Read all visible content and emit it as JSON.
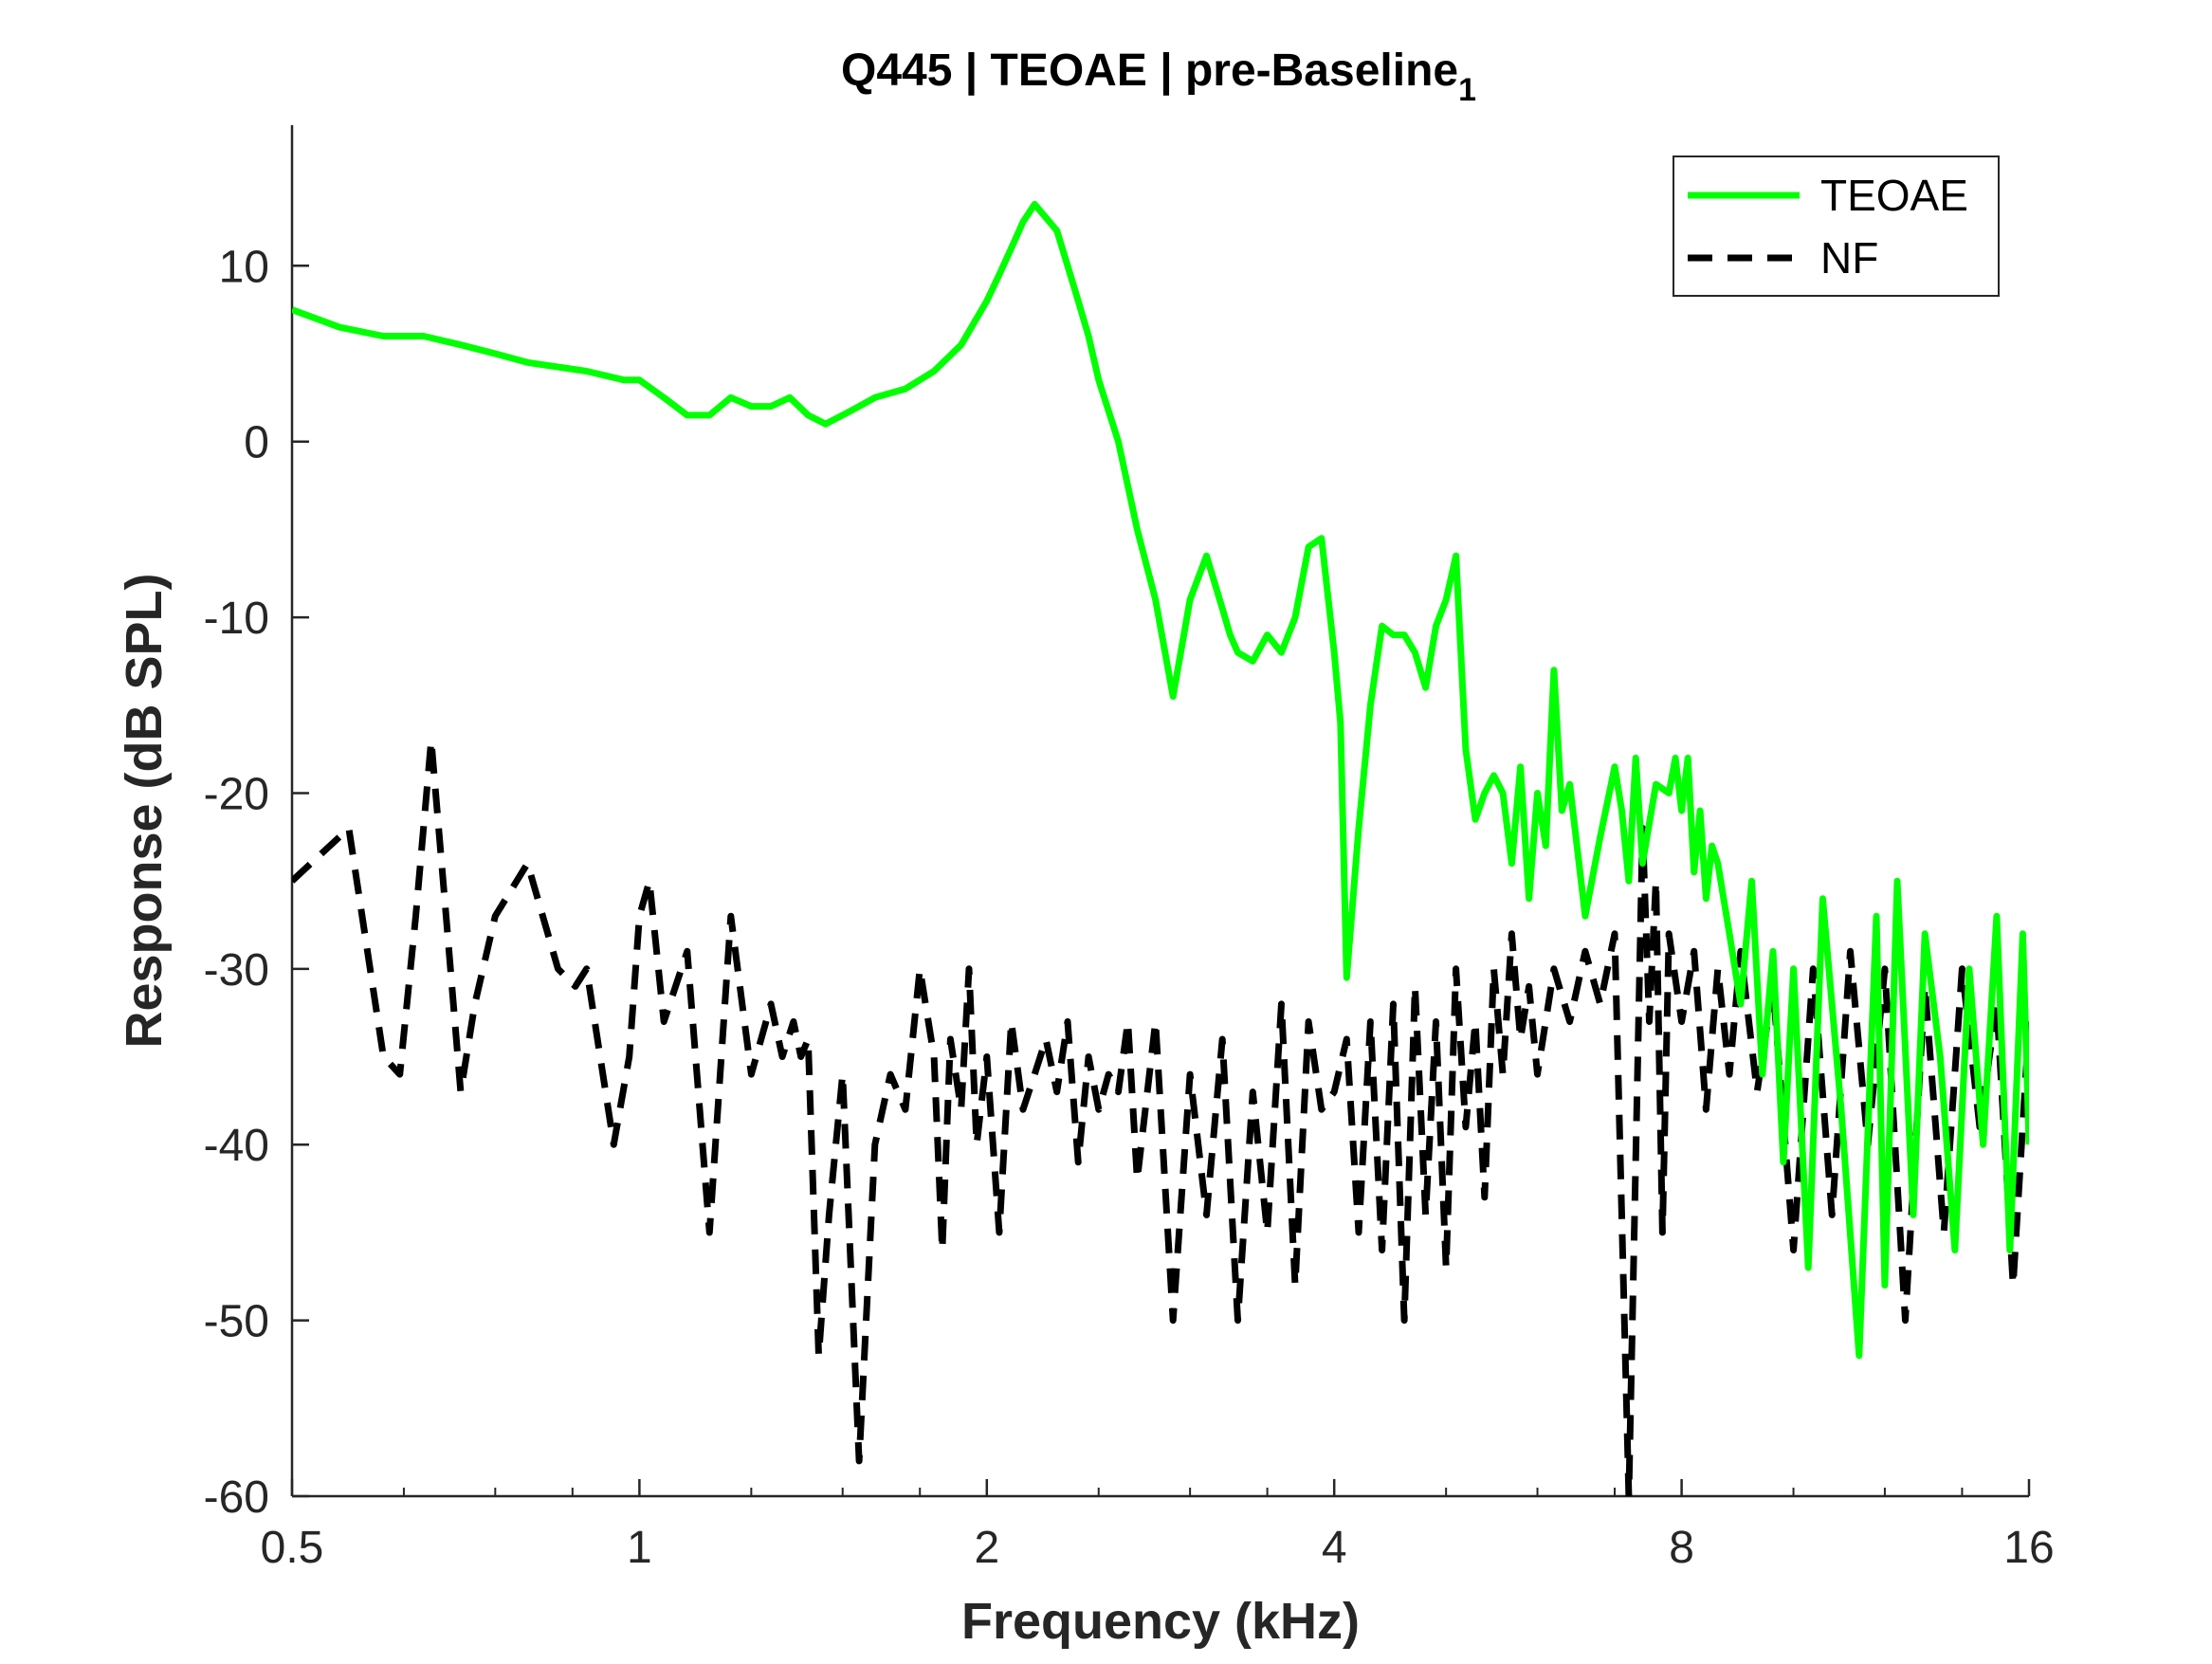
{
  "chart_data": {
    "type": "line",
    "title_main": "Q445 | TEOAE | pre-Baseline",
    "title_subscript": "1",
    "xlabel": "Frequency (kHz)",
    "ylabel": "Response (dB SPL)",
    "xscale": "log2",
    "xlim": [
      0.5,
      16
    ],
    "ylim": [
      -60,
      18
    ],
    "xticks": [
      0.5,
      1,
      2,
      4,
      8,
      16
    ],
    "xtick_labels": [
      "0.5",
      "1",
      "2",
      "4",
      "8",
      "16"
    ],
    "yticks": [
      -60,
      -50,
      -40,
      -30,
      -20,
      -10,
      0,
      10
    ],
    "ytick_labels": [
      "-60",
      "-50",
      "-40",
      "-30",
      "-20",
      "-10",
      "0",
      "10"
    ],
    "grid": false,
    "legend_position": "top-right",
    "series": [
      {
        "name": "TEOAE",
        "color": "#00ff00",
        "style": "solid",
        "x": [
          0.5,
          0.55,
          0.6,
          0.65,
          0.7,
          0.75,
          0.8,
          0.9,
          0.97,
          1.0,
          1.05,
          1.1,
          1.15,
          1.2,
          1.25,
          1.3,
          1.35,
          1.4,
          1.45,
          1.5,
          1.55,
          1.6,
          1.7,
          1.8,
          1.9,
          2.0,
          2.05,
          2.1,
          2.15,
          2.2,
          2.3,
          2.35,
          2.4,
          2.45,
          2.5,
          2.6,
          2.7,
          2.8,
          2.9,
          3.0,
          3.1,
          3.2,
          3.25,
          3.3,
          3.4,
          3.5,
          3.6,
          3.7,
          3.8,
          3.9,
          4.0,
          4.05,
          4.1,
          4.2,
          4.3,
          4.4,
          4.5,
          4.6,
          4.7,
          4.8,
          4.9,
          5.0,
          5.1,
          5.2,
          5.3,
          5.4,
          5.5,
          5.6,
          5.7,
          5.8,
          5.9,
          6.0,
          6.1,
          6.2,
          6.3,
          6.4,
          6.6,
          6.8,
          6.9,
          7.0,
          7.1,
          7.2,
          7.3,
          7.4,
          7.6,
          7.8,
          7.9,
          8.0,
          8.1,
          8.2,
          8.3,
          8.4,
          8.5,
          8.6,
          8.8,
          9.0,
          9.2,
          9.4,
          9.6,
          9.8,
          10.0,
          10.3,
          10.6,
          11.0,
          11.4,
          11.8,
          12.0,
          12.3,
          12.7,
          13.0,
          13.4,
          13.8,
          14.2,
          14.6,
          15.0,
          15.4,
          15.8,
          16.0
        ],
        "y": [
          7.5,
          6.5,
          6.0,
          6.0,
          5.5,
          5.0,
          4.5,
          4.0,
          3.5,
          3.5,
          2.5,
          1.5,
          1.5,
          2.5,
          2.0,
          2.0,
          2.5,
          1.5,
          1.0,
          1.5,
          2.0,
          2.5,
          3.0,
          4.0,
          5.5,
          8.0,
          9.5,
          11.0,
          12.5,
          13.5,
          12.0,
          10.0,
          8.0,
          6.0,
          3.5,
          0.0,
          -5.0,
          -9.0,
          -14.5,
          -9.0,
          -6.5,
          -9.5,
          -11.0,
          -12.0,
          -12.5,
          -11.0,
          -12.0,
          -10.0,
          -6.0,
          -5.5,
          -12.0,
          -16.0,
          -30.5,
          -22.0,
          -15.0,
          -10.5,
          -11.0,
          -11.0,
          -12.0,
          -14.0,
          -10.5,
          -9.0,
          -6.5,
          -17.5,
          -21.5,
          -20.0,
          -19.0,
          -20.0,
          -24.0,
          -18.5,
          -26.0,
          -20.0,
          -23.0,
          -13.0,
          -21.0,
          -19.5,
          -27.0,
          -22.5,
          -20.5,
          -18.5,
          -21.0,
          -25.0,
          -18.0,
          -24.0,
          -19.5,
          -20.0,
          -18.0,
          -21.0,
          -18.0,
          -24.5,
          -21.0,
          -26.0,
          -23.0,
          -24.0,
          -28.0,
          -32.0,
          -25.0,
          -36.0,
          -29.0,
          -41.0,
          -30.0,
          -47.0,
          -26.0,
          -38.0,
          -52.0,
          -27.0,
          -48.0,
          -25.0,
          -44.0,
          -28.0,
          -35.0,
          -46.0,
          -30.0,
          -40.0,
          -27.0,
          -46.0,
          -28.0,
          -40.0
        ]
      },
      {
        "name": "NF",
        "color": "#000000",
        "style": "dashed",
        "x": [
          0.5,
          0.56,
          0.6,
          0.62,
          0.64,
          0.66,
          0.68,
          0.7,
          0.72,
          0.75,
          0.8,
          0.85,
          0.88,
          0.9,
          0.95,
          0.98,
          1.0,
          1.02,
          1.05,
          1.1,
          1.15,
          1.2,
          1.25,
          1.3,
          1.33,
          1.36,
          1.38,
          1.4,
          1.43,
          1.46,
          1.5,
          1.55,
          1.6,
          1.65,
          1.7,
          1.75,
          1.8,
          1.83,
          1.86,
          1.9,
          1.93,
          1.96,
          2.0,
          2.05,
          2.1,
          2.15,
          2.2,
          2.25,
          2.3,
          2.35,
          2.4,
          2.45,
          2.5,
          2.55,
          2.6,
          2.65,
          2.7,
          2.8,
          2.9,
          3.0,
          3.1,
          3.2,
          3.3,
          3.4,
          3.5,
          3.6,
          3.7,
          3.8,
          3.9,
          4.0,
          4.1,
          4.2,
          4.3,
          4.4,
          4.5,
          4.6,
          4.7,
          4.8,
          4.9,
          5.0,
          5.1,
          5.2,
          5.3,
          5.4,
          5.5,
          5.6,
          5.7,
          5.8,
          5.9,
          6.0,
          6.2,
          6.4,
          6.6,
          6.8,
          7.0,
          7.2,
          7.4,
          7.5,
          7.6,
          7.7,
          7.8,
          8.0,
          8.2,
          8.4,
          8.6,
          8.8,
          9.0,
          9.3,
          9.6,
          10.0,
          10.4,
          10.8,
          11.2,
          11.6,
          12.0,
          12.5,
          13.0,
          13.5,
          14.0,
          14.5,
          15.0,
          15.5,
          16.0
        ],
        "y": [
          -25.0,
          -22.0,
          -35.0,
          -36.0,
          -27.0,
          -17.0,
          -27.0,
          -37.0,
          -32.0,
          -27.0,
          -24.0,
          -30.0,
          -31.0,
          -30.0,
          -40.0,
          -35.0,
          -27.0,
          -25.0,
          -33.0,
          -29.0,
          -45.0,
          -27.0,
          -36.0,
          -32.0,
          -35.0,
          -33.0,
          -35.0,
          -34.0,
          -52.0,
          -44.0,
          -36.0,
          -58.0,
          -40.0,
          -36.0,
          -38.0,
          -30.0,
          -35.0,
          -46.0,
          -34.0,
          -38.0,
          -30.0,
          -40.0,
          -35.0,
          -45.0,
          -33.0,
          -38.0,
          -36.0,
          -34.0,
          -37.0,
          -33.0,
          -41.0,
          -35.0,
          -38.0,
          -36.0,
          -37.0,
          -33.0,
          -42.0,
          -33.0,
          -50.0,
          -36.0,
          -44.0,
          -34.0,
          -50.0,
          -37.0,
          -45.0,
          -32.0,
          -48.0,
          -33.0,
          -38.0,
          -37.0,
          -34.0,
          -45.0,
          -33.0,
          -46.0,
          -32.0,
          -50.0,
          -31.0,
          -44.0,
          -33.0,
          -47.0,
          -30.0,
          -39.0,
          -33.0,
          -43.0,
          -30.0,
          -36.0,
          -28.0,
          -34.0,
          -31.0,
          -36.0,
          -30.0,
          -33.0,
          -29.0,
          -32.0,
          -28.0,
          -60.0,
          -22.0,
          -33.0,
          -25.0,
          -45.0,
          -28.0,
          -33.0,
          -29.0,
          -38.0,
          -30.0,
          -36.0,
          -29.0,
          -37.0,
          -31.0,
          -46.0,
          -30.0,
          -44.0,
          -29.0,
          -40.0,
          -30.0,
          -50.0,
          -31.0,
          -45.0,
          -30.0,
          -39.0,
          -32.0,
          -48.0,
          -33.0
        ]
      }
    ]
  }
}
